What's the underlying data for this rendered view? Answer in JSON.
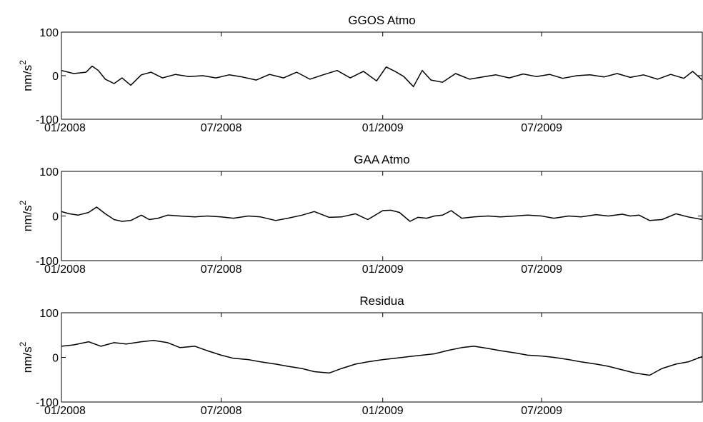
{
  "chart_data": [
    {
      "type": "line",
      "title": "GGOS Atmo",
      "ylabel": "nm/s",
      "ylabel_sup": "2",
      "ylim": [
        -100,
        100
      ],
      "yticks": [
        -100,
        0,
        100
      ],
      "xlim": [
        "2008-01-01",
        "2009-12-31"
      ],
      "xticks": [
        "2008-01-01",
        "2008-07-01",
        "2009-01-01",
        "2009-07-01"
      ],
      "xtick_labels": [
        "01/2008",
        "07/2008",
        "01/2009",
        "07/2009"
      ],
      "series": [
        {
          "x": [
            "2008-01-01",
            "2008-01-15",
            "2008-01-29",
            "2008-02-05",
            "2008-02-12",
            "2008-02-20",
            "2008-03-01",
            "2008-03-10",
            "2008-03-20",
            "2008-04-01",
            "2008-04-12",
            "2008-04-25",
            "2008-05-10",
            "2008-05-25",
            "2008-06-10",
            "2008-06-25",
            "2008-07-10",
            "2008-07-25",
            "2008-08-10",
            "2008-08-25",
            "2008-09-10",
            "2008-09-25",
            "2008-10-10",
            "2008-10-25",
            "2008-11-10",
            "2008-11-25",
            "2008-12-10",
            "2008-12-25",
            "2009-01-05",
            "2009-01-15",
            "2009-01-25",
            "2009-02-05",
            "2009-02-15",
            "2009-02-25",
            "2009-03-10",
            "2009-03-25",
            "2009-04-10",
            "2009-04-25",
            "2009-05-10",
            "2009-05-25",
            "2009-06-10",
            "2009-06-25",
            "2009-07-10",
            "2009-07-25",
            "2009-08-10",
            "2009-08-25",
            "2009-09-10",
            "2009-09-25",
            "2009-10-10",
            "2009-10-25",
            "2009-11-10",
            "2009-11-25",
            "2009-12-10",
            "2009-12-20",
            "2009-12-31"
          ],
          "y": [
            12,
            5,
            8,
            22,
            12,
            -8,
            -18,
            -5,
            -22,
            2,
            8,
            -5,
            3,
            -2,
            0,
            -5,
            2,
            -3,
            -10,
            3,
            -5,
            8,
            -8,
            2,
            12,
            -5,
            10,
            -12,
            20,
            10,
            -2,
            -25,
            12,
            -10,
            -15,
            5,
            -8,
            -3,
            2,
            -5,
            4,
            -2,
            3,
            -6,
            0,
            2,
            -3,
            5,
            -4,
            2,
            -8,
            3,
            -6,
            10,
            -10
          ]
        }
      ]
    },
    {
      "type": "line",
      "title": "GAA Atmo",
      "ylabel": "nm/s",
      "ylabel_sup": "2",
      "ylim": [
        -100,
        100
      ],
      "yticks": [
        -100,
        0,
        100
      ],
      "xlim": [
        "2008-01-01",
        "2009-12-31"
      ],
      "xticks": [
        "2008-01-01",
        "2008-07-01",
        "2009-01-01",
        "2009-07-01"
      ],
      "xtick_labels": [
        "01/2008",
        "07/2008",
        "01/2009",
        "07/2009"
      ],
      "series": [
        {
          "x": [
            "2008-01-01",
            "2008-01-10",
            "2008-01-20",
            "2008-02-01",
            "2008-02-10",
            "2008-02-20",
            "2008-03-01",
            "2008-03-10",
            "2008-03-20",
            "2008-04-01",
            "2008-04-10",
            "2008-04-20",
            "2008-05-01",
            "2008-05-15",
            "2008-06-01",
            "2008-06-15",
            "2008-07-01",
            "2008-07-15",
            "2008-08-01",
            "2008-08-15",
            "2008-09-01",
            "2008-09-15",
            "2008-10-01",
            "2008-10-15",
            "2008-11-01",
            "2008-11-15",
            "2008-12-01",
            "2008-12-15",
            "2009-01-01",
            "2009-01-10",
            "2009-01-20",
            "2009-02-01",
            "2009-02-10",
            "2009-02-20",
            "2009-03-01",
            "2009-03-10",
            "2009-03-20",
            "2009-04-01",
            "2009-04-15",
            "2009-05-01",
            "2009-05-15",
            "2009-06-01",
            "2009-06-15",
            "2009-07-01",
            "2009-07-15",
            "2009-08-01",
            "2009-08-15",
            "2009-09-01",
            "2009-09-15",
            "2009-10-01",
            "2009-10-10",
            "2009-10-20",
            "2009-11-01",
            "2009-11-15",
            "2009-12-01",
            "2009-12-15",
            "2009-12-31"
          ],
          "y": [
            10,
            5,
            2,
            8,
            20,
            5,
            -8,
            -12,
            -10,
            2,
            -8,
            -5,
            2,
            0,
            -2,
            0,
            -2,
            -5,
            0,
            -2,
            -10,
            -5,
            2,
            10,
            -3,
            -2,
            5,
            -8,
            12,
            13,
            8,
            -12,
            -3,
            -5,
            0,
            2,
            12,
            -5,
            -2,
            0,
            -2,
            0,
            2,
            0,
            -5,
            0,
            -2,
            3,
            0,
            4,
            0,
            2,
            -10,
            -8,
            5,
            -2,
            -8
          ]
        }
      ]
    },
    {
      "type": "line",
      "title": "Residua",
      "ylabel": "nm/s",
      "ylabel_sup": "2",
      "ylim": [
        -100,
        100
      ],
      "yticks": [
        -100,
        0,
        100
      ],
      "xlim": [
        "2008-01-01",
        "2009-12-31"
      ],
      "xticks": [
        "2008-01-01",
        "2008-07-01",
        "2009-01-01",
        "2009-07-01"
      ],
      "xtick_labels": [
        "01/2008",
        "07/2008",
        "01/2009",
        "07/2009"
      ],
      "series": [
        {
          "x": [
            "2008-01-01",
            "2008-01-15",
            "2008-02-01",
            "2008-02-15",
            "2008-03-01",
            "2008-03-15",
            "2008-04-01",
            "2008-04-15",
            "2008-05-01",
            "2008-05-15",
            "2008-06-01",
            "2008-06-15",
            "2008-07-01",
            "2008-07-15",
            "2008-08-01",
            "2008-08-15",
            "2008-09-01",
            "2008-09-15",
            "2008-10-01",
            "2008-10-15",
            "2008-11-01",
            "2008-11-15",
            "2008-12-01",
            "2008-12-15",
            "2009-01-01",
            "2009-01-15",
            "2009-02-01",
            "2009-02-15",
            "2009-03-01",
            "2009-03-15",
            "2009-04-01",
            "2009-04-15",
            "2009-05-01",
            "2009-05-15",
            "2009-06-01",
            "2009-06-15",
            "2009-07-01",
            "2009-07-15",
            "2009-08-01",
            "2009-08-15",
            "2009-09-01",
            "2009-09-15",
            "2009-10-01",
            "2009-10-15",
            "2009-11-01",
            "2009-11-15",
            "2009-12-01",
            "2009-12-15",
            "2009-12-31"
          ],
          "y": [
            25,
            28,
            35,
            25,
            33,
            30,
            35,
            38,
            33,
            22,
            25,
            15,
            5,
            -2,
            -5,
            -10,
            -15,
            -20,
            -25,
            -32,
            -35,
            -25,
            -15,
            -10,
            -5,
            -2,
            2,
            5,
            8,
            15,
            22,
            25,
            20,
            15,
            10,
            5,
            3,
            0,
            -5,
            -10,
            -15,
            -20,
            -28,
            -35,
            -40,
            -25,
            -15,
            -10,
            2
          ]
        }
      ]
    }
  ]
}
